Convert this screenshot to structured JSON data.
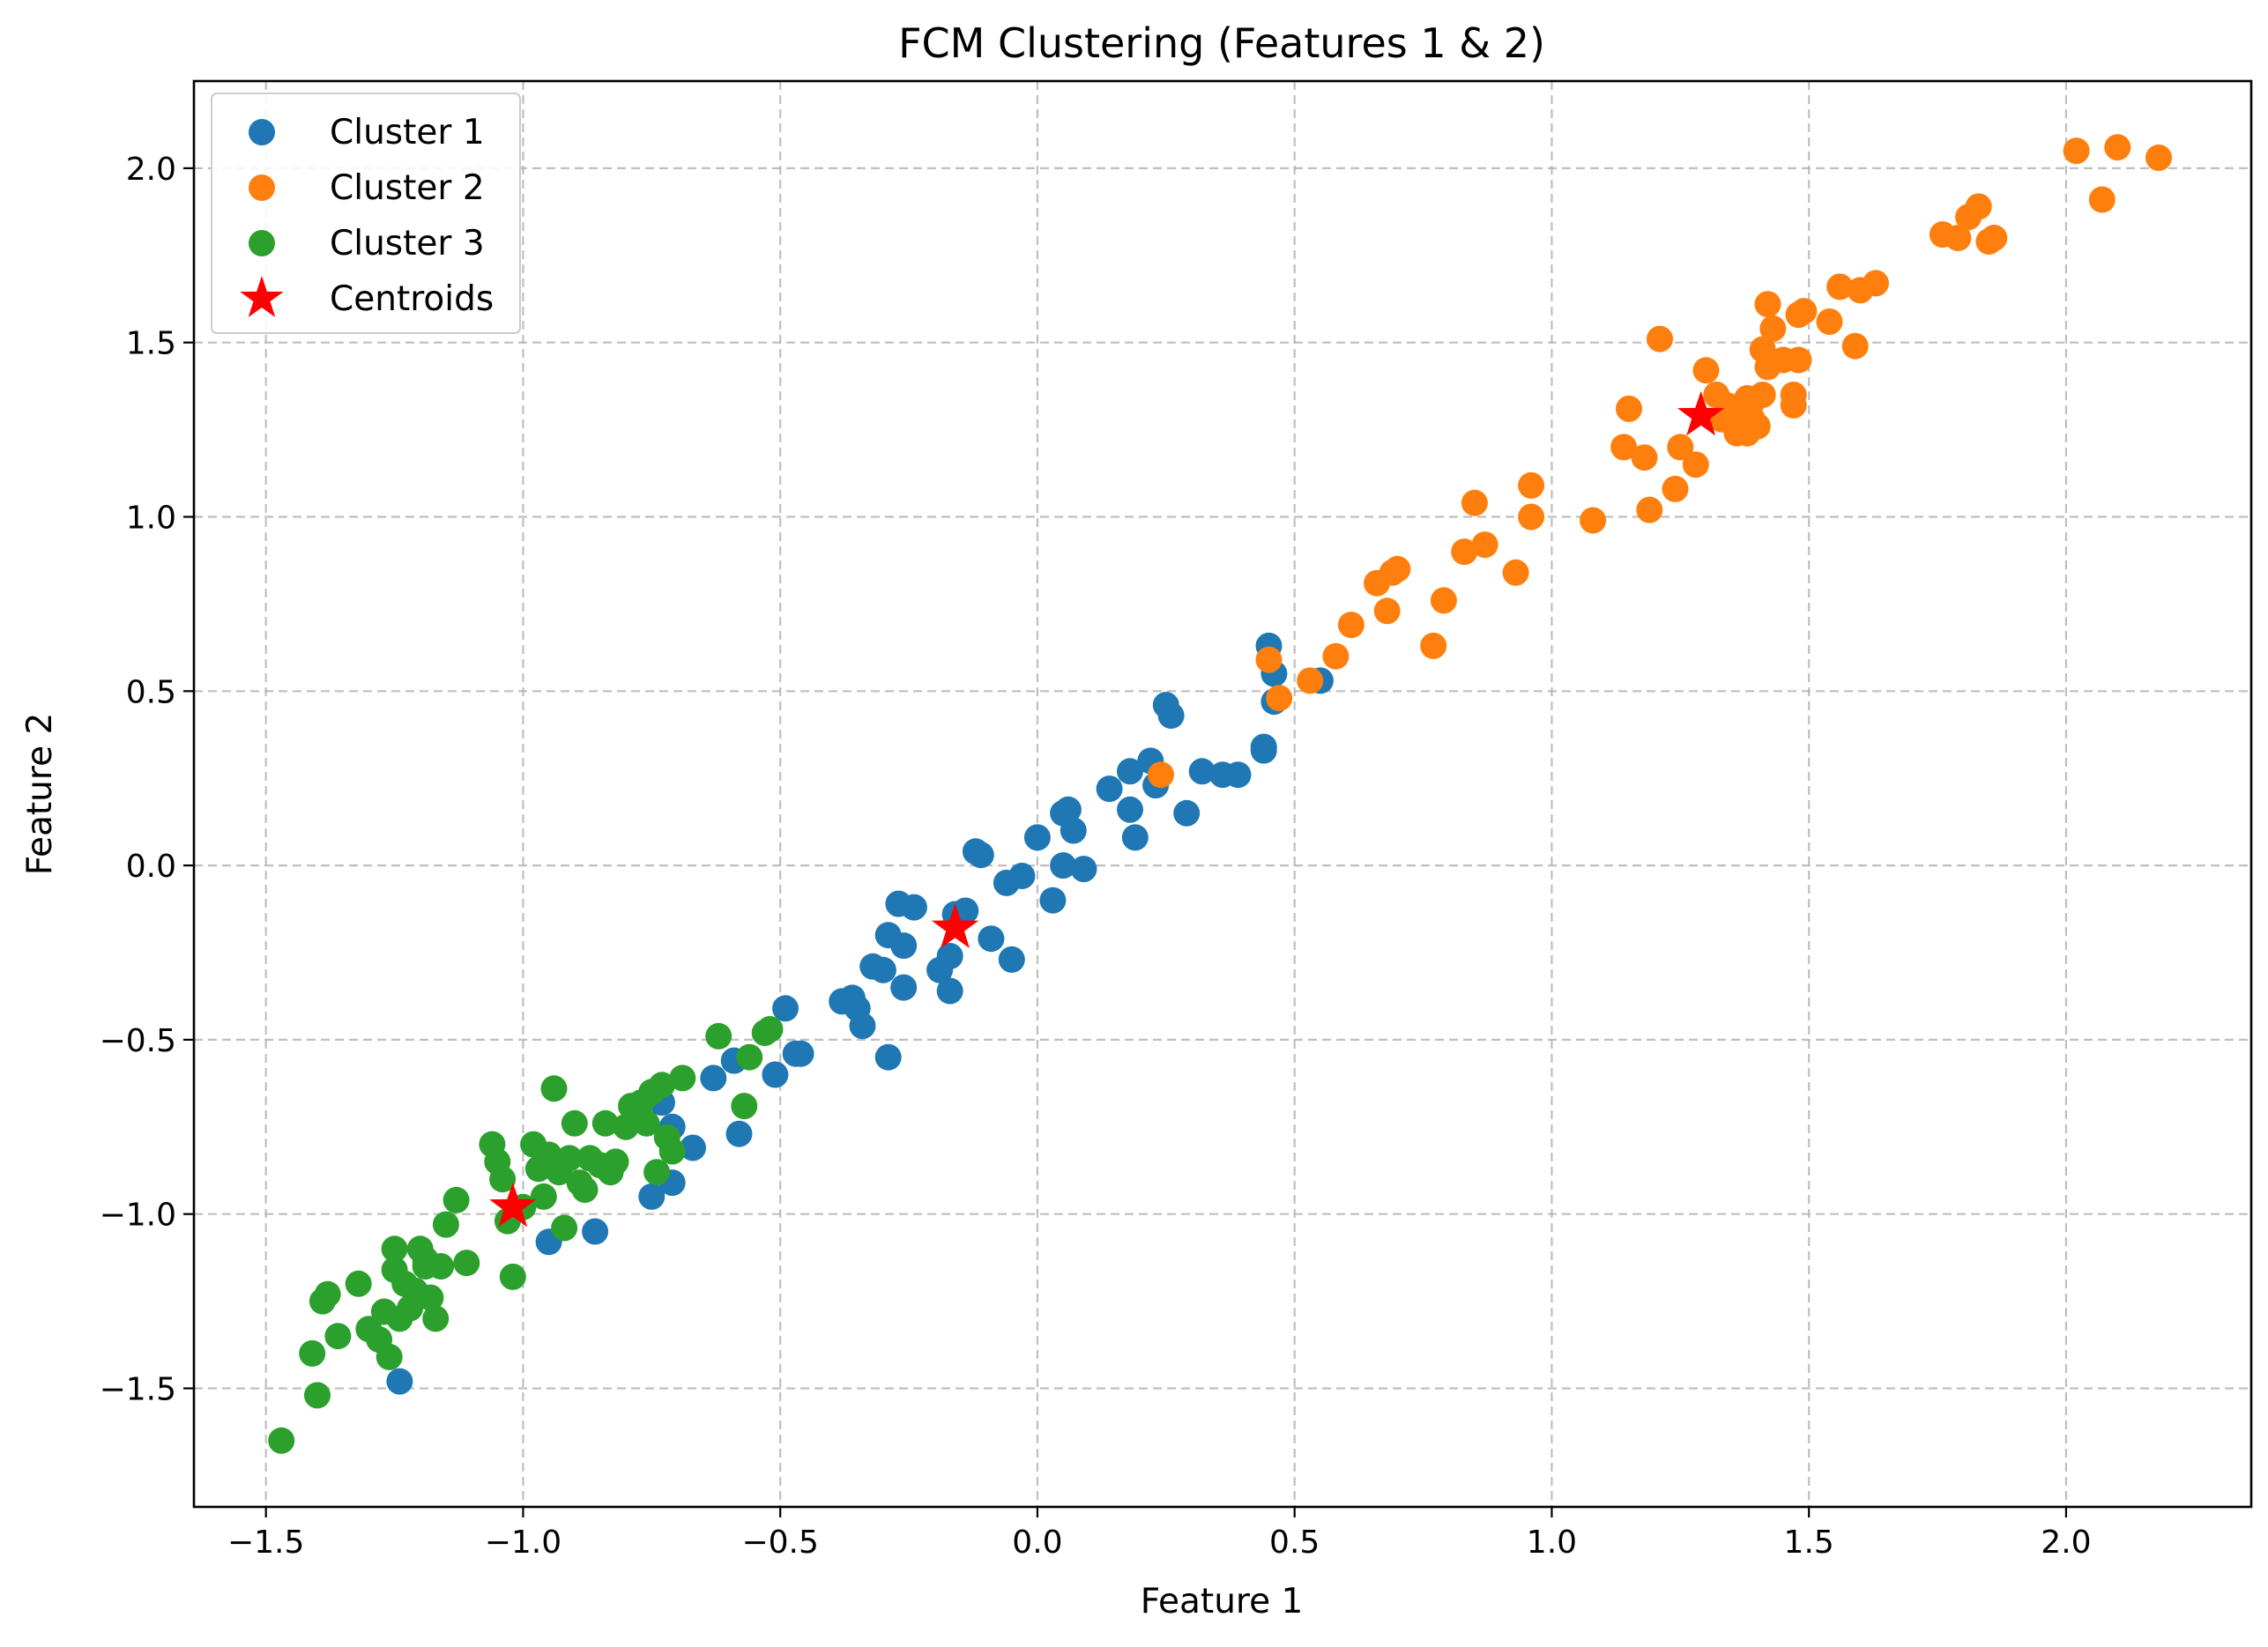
{
  "chart_data": {
    "type": "scatter",
    "title": "FCM Clustering (Features 1 & 2)",
    "xlabel": "Feature 1",
    "ylabel": "Feature 2",
    "xlim": [
      -1.64,
      2.36
    ],
    "ylim": [
      -1.84,
      2.25
    ],
    "xticks": [
      -1.5,
      -1.0,
      -0.5,
      0.0,
      0.5,
      1.0,
      1.5,
      2.0
    ],
    "yticks": [
      -1.5,
      -1.0,
      -0.5,
      0.0,
      0.5,
      1.0,
      1.5,
      2.0
    ],
    "xtick_labels": [
      "−1.5",
      "−1.0",
      "−0.5",
      "0.0",
      "0.5",
      "1.0",
      "1.5",
      "2.0"
    ],
    "ytick_labels": [
      "−1.5",
      "−1.0",
      "−0.5",
      "0.0",
      "0.5",
      "1.0",
      "1.5",
      "2.0"
    ],
    "grid": true,
    "legend_position": "top-left",
    "series": [
      {
        "name": "Cluster 1",
        "color": "#1f77b4",
        "marker": "circle",
        "x": [
          -1.24,
          -0.95,
          -0.86,
          -0.75,
          -0.71,
          -0.71,
          -0.67,
          -0.58,
          -0.59,
          -0.63,
          -0.51,
          -0.49,
          -0.46,
          -0.47,
          -0.38,
          -0.36,
          -0.34,
          -0.35,
          -0.3,
          -0.32,
          -0.29,
          -0.27,
          -0.26,
          -0.24,
          -0.29,
          -0.26,
          -0.19,
          -0.17,
          -0.16,
          -0.14,
          -0.17,
          -0.12,
          -0.11,
          -0.09,
          -0.05,
          -0.06,
          -0.03,
          0.0,
          0.03,
          0.05,
          0.06,
          0.07,
          0.09,
          0.05,
          0.14,
          0.18,
          0.18,
          0.19,
          0.22,
          0.23,
          0.25,
          0.26,
          0.29,
          0.32,
          0.36,
          0.39,
          0.44,
          0.44,
          0.45,
          0.46,
          0.46,
          0.55,
          -0.73
        ],
        "y": [
          -1.48,
          -1.08,
          -1.05,
          -0.95,
          -0.91,
          -0.75,
          -0.81,
          -0.77,
          -0.56,
          -0.61,
          -0.6,
          -0.41,
          -0.54,
          -0.54,
          -0.39,
          -0.38,
          -0.46,
          -0.41,
          -0.3,
          -0.29,
          -0.2,
          -0.11,
          -0.23,
          -0.12,
          -0.55,
          -0.35,
          -0.3,
          -0.26,
          -0.14,
          -0.13,
          -0.36,
          0.04,
          0.03,
          -0.21,
          -0.27,
          -0.05,
          -0.03,
          0.08,
          -0.1,
          0.0,
          0.16,
          0.1,
          -0.01,
          0.15,
          0.22,
          0.27,
          0.16,
          0.08,
          0.3,
          0.23,
          0.46,
          0.43,
          0.15,
          0.27,
          0.26,
          0.26,
          0.34,
          0.33,
          0.63,
          0.55,
          0.47,
          0.53,
          -0.68
        ]
      },
      {
        "name": "Cluster 2",
        "color": "#ff7f0e",
        "marker": "circle",
        "x": [
          0.24,
          0.45,
          0.47,
          0.53,
          0.58,
          0.61,
          0.66,
          0.68,
          0.69,
          0.7,
          0.77,
          0.79,
          0.83,
          0.85,
          0.87,
          0.93,
          0.96,
          0.96,
          1.08,
          1.14,
          1.15,
          1.18,
          1.19,
          1.21,
          1.24,
          1.25,
          1.28,
          1.3,
          1.32,
          1.34,
          1.35,
          1.36,
          1.37,
          1.38,
          1.38,
          1.39,
          1.4,
          1.41,
          1.41,
          1.42,
          1.42,
          1.43,
          1.45,
          1.47,
          1.47,
          1.48,
          1.48,
          1.49,
          1.54,
          1.56,
          1.59,
          1.6,
          1.63,
          1.76,
          1.79,
          1.81,
          1.83,
          1.85,
          1.86,
          2.02,
          2.07,
          2.1,
          2.18,
          1.33,
          1.36,
          1.39
        ],
        "y": [
          0.26,
          0.59,
          0.48,
          0.53,
          0.6,
          0.69,
          0.81,
          0.73,
          0.84,
          0.85,
          0.63,
          0.76,
          0.9,
          1.04,
          0.92,
          0.84,
          1.09,
          1.0,
          0.99,
          1.2,
          1.31,
          1.17,
          1.02,
          1.51,
          1.08,
          1.2,
          1.15,
          1.42,
          1.35,
          1.32,
          1.27,
          1.26,
          1.3,
          1.34,
          1.24,
          1.28,
          1.26,
          1.35,
          1.48,
          1.43,
          1.61,
          1.54,
          1.45,
          1.32,
          1.35,
          1.45,
          1.58,
          1.59,
          1.56,
          1.66,
          1.49,
          1.65,
          1.67,
          1.81,
          1.8,
          1.86,
          1.89,
          1.79,
          1.8,
          2.05,
          1.91,
          2.06,
          2.03,
          1.28,
          1.24,
          1.33
        ]
      },
      {
        "name": "Cluster 3",
        "color": "#2ca02c",
        "marker": "circle",
        "x": [
          -1.47,
          -1.4,
          -1.41,
          -1.39,
          -1.38,
          -1.36,
          -1.32,
          -1.28,
          -1.26,
          -1.25,
          -1.25,
          -1.24,
          -1.22,
          -1.21,
          -1.2,
          -1.19,
          -1.18,
          -1.17,
          -1.16,
          -1.15,
          -1.13,
          -1.11,
          -1.06,
          -1.05,
          -1.04,
          -1.03,
          -1.02,
          -1.0,
          -0.98,
          -0.97,
          -0.96,
          -0.95,
          -0.94,
          -0.93,
          -0.92,
          -0.91,
          -0.9,
          -0.89,
          -0.88,
          -0.87,
          -0.85,
          -0.84,
          -0.83,
          -0.82,
          -0.8,
          -0.79,
          -0.77,
          -0.76,
          -0.75,
          -0.74,
          -0.73,
          -0.72,
          -0.71,
          -0.69,
          -0.62,
          -0.57,
          -0.56,
          -0.52,
          -0.53,
          -1.23,
          -1.19,
          -1.27,
          -1.3
        ],
        "y": [
          -1.65,
          -1.52,
          -1.4,
          -1.25,
          -1.23,
          -1.35,
          -1.2,
          -1.36,
          -1.41,
          -1.16,
          -1.1,
          -1.3,
          -1.27,
          -1.22,
          -1.1,
          -1.13,
          -1.24,
          -1.3,
          -1.15,
          -1.03,
          -0.96,
          -1.14,
          -0.8,
          -0.85,
          -0.9,
          -1.02,
          -1.18,
          -0.98,
          -0.8,
          -0.87,
          -0.95,
          -0.83,
          -0.64,
          -0.88,
          -1.04,
          -0.84,
          -0.74,
          -0.91,
          -0.93,
          -0.84,
          -0.86,
          -0.74,
          -0.88,
          -0.85,
          -0.75,
          -0.69,
          -0.68,
          -0.74,
          -0.65,
          -0.88,
          -0.63,
          -0.78,
          -0.82,
          -0.61,
          -0.49,
          -0.69,
          -0.55,
          -0.47,
          -0.48,
          -1.2,
          -1.15,
          -1.28,
          -1.33
        ]
      }
    ],
    "centroids": {
      "name": "Centroids",
      "color": "#ff0000",
      "marker": "star",
      "x": [
        1.29,
        -0.16,
        -1.02
      ],
      "y": [
        1.29,
        -0.18,
        -0.98
      ]
    }
  }
}
